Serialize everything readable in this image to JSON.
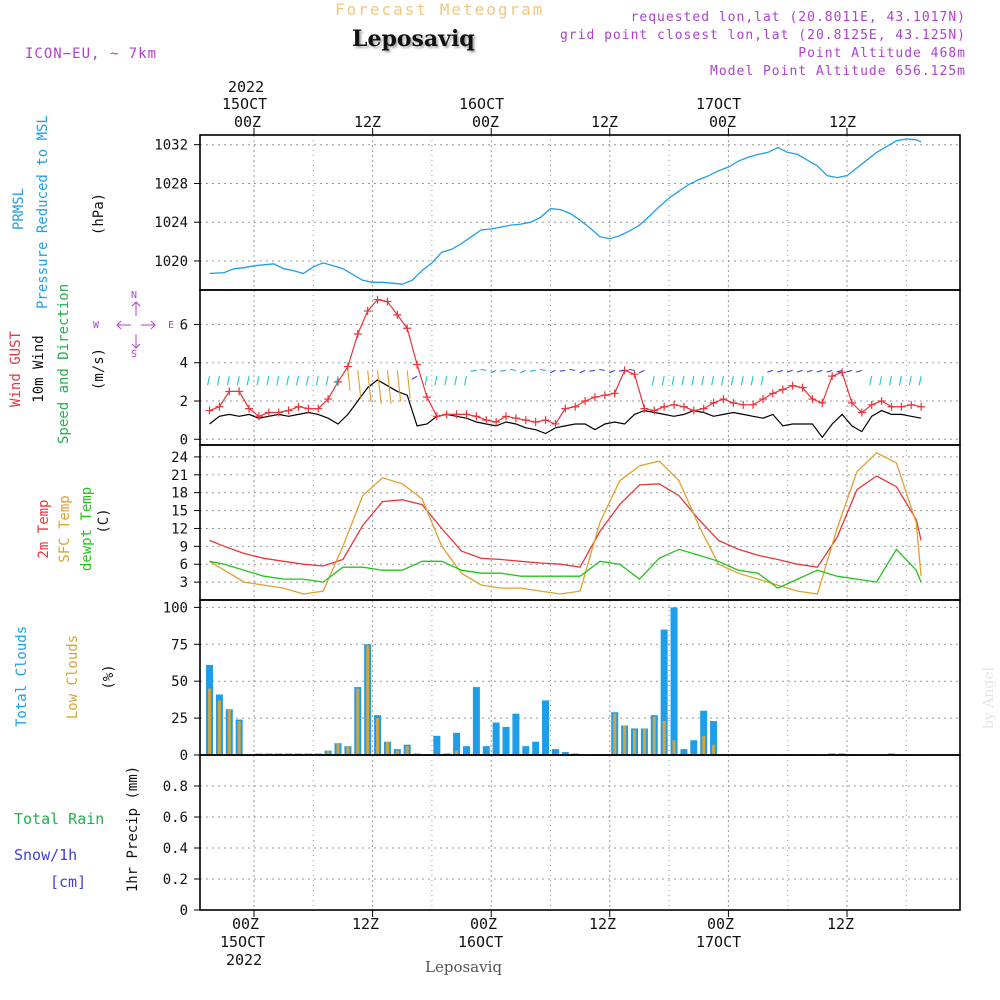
{
  "header": {
    "super_title": "Forecast Meteogram",
    "station": "Leposaviq",
    "model": "ICON−EU, ~ 7km",
    "requested": "requested lon,lat (20.8011E, 43.1017N)",
    "grid_point": "grid point closest lon,lat (20.8125E, 43.125N)",
    "point_altitude": "Point Altitude 468m",
    "model_altitude": "Model Point Altitude 656.125m",
    "footer_station": "Leposaviq",
    "watermark": "by Angel"
  },
  "time_axis": {
    "top": [
      {
        "label": "00Z",
        "date": "15OCT",
        "year": "2022"
      },
      {
        "label": "12Z"
      },
      {
        "label": "00Z",
        "date": "16OCT"
      },
      {
        "label": "12Z"
      },
      {
        "label": "00Z",
        "date": "17OCT"
      },
      {
        "label": "12Z"
      }
    ],
    "bottom": [
      {
        "label": "00Z",
        "date": "15OCT",
        "year": "2022"
      },
      {
        "label": "12Z"
      },
      {
        "label": "00Z",
        "date": "16OCT"
      },
      {
        "label": "12Z"
      },
      {
        "label": "00Z",
        "date": "17OCT"
      },
      {
        "label": "12Z"
      }
    ]
  },
  "panels": {
    "pressure": {
      "label1": "PRMSL",
      "label2": "Pressure Reduced to MSL",
      "unit": "(hPa)",
      "color": "#1e9ee8"
    },
    "wind": {
      "gust_label": "Wind GUST",
      "wind_label": "10m Wind",
      "speed_dir_label": "Speed and Direction",
      "unit": "(m/s)",
      "compass_w": "W",
      "compass_e": "E",
      "compass_n": "N",
      "compass_s": "S",
      "gust_color": "#e8363c",
      "wind_color": "#000000",
      "dir_color": "#22b14c"
    },
    "temperature": {
      "t2m_label": "2m Temp",
      "sfc_label": "SFC Temp",
      "dewpt_label": "dewpt Temp",
      "unit": "(C)",
      "t2m_color": "#e8363c",
      "sfc_color": "#e0a030",
      "dewpt_color": "#22c41c"
    },
    "clouds": {
      "total_label": "Total Clouds",
      "low_label": "Low Clouds",
      "unit": "(%)",
      "total_color": "#1e9ee8",
      "low_color": "#d4a43c"
    },
    "precip": {
      "rain_label": "Total  Rain",
      "snow_label": "Snow/1h",
      "snow_unit": "[cm]",
      "axis_label": "1hr Precip (mm)",
      "rain_color": "#22b14c",
      "snow_color": "#3f3fd8"
    }
  },
  "chart_data": [
    {
      "type": "line",
      "title": "PRMSL",
      "ylabel": "(hPa)",
      "x_hours_from_15OCT_00Z": [
        -4.5,
        -3,
        -2,
        -1,
        0,
        1,
        2,
        3,
        4,
        5,
        6,
        7,
        8,
        9,
        10,
        11,
        12,
        13,
        14,
        15,
        16,
        17,
        18,
        19,
        20,
        21,
        22,
        23,
        24,
        25,
        26,
        27,
        28,
        29,
        30,
        31,
        32,
        33,
        34,
        35,
        36,
        37,
        38,
        39,
        40,
        41,
        42,
        43,
        44,
        45,
        46,
        47,
        48,
        49,
        50,
        51,
        52,
        53,
        54,
        55,
        56,
        57,
        58,
        59,
        60,
        61,
        62,
        63,
        64,
        65,
        66,
        67,
        67.5
      ],
      "series": [
        {
          "name": "PRMSL",
          "values": [
            1018.7,
            1018.8,
            1019.2,
            1019.3,
            1019.5,
            1019.6,
            1019.7,
            1019.2,
            1019.0,
            1018.7,
            1019.4,
            1019.8,
            1019.5,
            1019.2,
            1018.6,
            1018.0,
            1017.8,
            1017.8,
            1017.7,
            1017.6,
            1018.0,
            1019.0,
            1019.8,
            1020.9,
            1021.2,
            1021.8,
            1022.5,
            1023.2,
            1023.3,
            1023.5,
            1023.7,
            1023.8,
            1024.0,
            1024.5,
            1025.4,
            1025.3,
            1024.9,
            1024.2,
            1023.4,
            1022.5,
            1022.3,
            1022.6,
            1023.1,
            1023.7,
            1024.6,
            1025.6,
            1026.5,
            1027.2,
            1027.9,
            1028.4,
            1028.8,
            1029.3,
            1029.7,
            1030.3,
            1030.7,
            1031.0,
            1031.2,
            1031.7,
            1031.2,
            1031.0,
            1030.4,
            1029.8,
            1028.8,
            1028.6,
            1028.8,
            1029.6,
            1030.4,
            1031.2,
            1031.8,
            1032.4,
            1032.6,
            1032.5,
            1032.3
          ]
        }
      ],
      "ylim": [
        1017,
        1033
      ],
      "yticks": [
        1020,
        1024,
        1028,
        1032
      ]
    },
    {
      "type": "line",
      "title": "Wind",
      "ylabel": "(m/s)",
      "x_hours_from_15OCT_00Z": [
        -4.5,
        -3.5,
        -2.5,
        -1.5,
        -0.5,
        0.5,
        1.5,
        2.5,
        3.5,
        4.5,
        5.5,
        6.5,
        7.5,
        8.5,
        9.5,
        10.5,
        11.5,
        12.5,
        13.5,
        14.5,
        15.5,
        16.5,
        17.5,
        18.5,
        19.5,
        20.5,
        21.5,
        22.5,
        23.5,
        24.5,
        25.5,
        26.5,
        27.5,
        28.5,
        29.5,
        30.5,
        31.5,
        32.5,
        33.5,
        34.5,
        35.5,
        36.5,
        37.5,
        38.5,
        39.5,
        40.5,
        41.5,
        42.5,
        43.5,
        44.5,
        45.5,
        46.5,
        47.5,
        48.5,
        49.5,
        50.5,
        51.5,
        52.5,
        53.5,
        54.5,
        55.5,
        56.5,
        57.5,
        58.5,
        59.5,
        60.5,
        61.5,
        62.5,
        63.5,
        64.5,
        65.5,
        66.5,
        67.5
      ],
      "series": [
        {
          "name": "Wind GUST",
          "values": [
            1.5,
            1.7,
            2.5,
            2.5,
            1.6,
            1.2,
            1.4,
            1.4,
            1.5,
            1.7,
            1.6,
            1.6,
            2.1,
            3.0,
            3.8,
            5.5,
            6.7,
            7.3,
            7.2,
            6.5,
            5.8,
            3.9,
            2.2,
            1.2,
            1.3,
            1.3,
            1.3,
            1.2,
            1.0,
            0.9,
            1.2,
            1.1,
            1.0,
            0.9,
            1.0,
            0.8,
            1.6,
            1.7,
            2.0,
            2.2,
            2.3,
            2.4,
            3.6,
            3.4,
            1.6,
            1.5,
            1.7,
            1.8,
            1.7,
            1.5,
            1.6,
            1.9,
            2.1,
            1.9,
            1.8,
            1.8,
            2.1,
            2.4,
            2.6,
            2.8,
            2.7,
            2.1,
            1.9,
            3.3,
            3.5,
            1.9,
            1.4,
            1.8,
            2.0,
            1.7,
            1.7,
            1.8,
            1.7
          ]
        },
        {
          "name": "10m Wind",
          "values": [
            0.8,
            1.2,
            1.3,
            1.2,
            1.3,
            1.1,
            1.2,
            1.3,
            1.2,
            1.3,
            1.4,
            1.3,
            1.1,
            0.8,
            1.3,
            2.0,
            2.7,
            3.1,
            2.8,
            2.5,
            2.3,
            0.7,
            0.8,
            1.2,
            1.3,
            1.2,
            1.1,
            0.9,
            0.8,
            0.7,
            0.9,
            0.8,
            0.6,
            0.5,
            0.3,
            0.6,
            0.7,
            0.8,
            0.8,
            0.5,
            0.8,
            0.9,
            0.8,
            1.3,
            1.5,
            1.4,
            1.3,
            1.2,
            1.3,
            1.5,
            1.4,
            1.2,
            1.3,
            1.4,
            1.3,
            1.2,
            1.1,
            1.3,
            0.7,
            0.8,
            0.8,
            0.8,
            0.1,
            0.8,
            1.3,
            0.7,
            0.4,
            1.2,
            1.5,
            1.3,
            1.3,
            1.2,
            1.1
          ]
        }
      ],
      "ylim": [
        -0.3,
        7.8
      ],
      "yticks": [
        0,
        2,
        4,
        6
      ]
    },
    {
      "type": "line",
      "title": "Temperature",
      "ylabel": "(C)",
      "x_hours_from_15OCT_00Z": [
        -4.5,
        -3,
        -1,
        1,
        3,
        5,
        7,
        9,
        11,
        13,
        15,
        17,
        19,
        21,
        23,
        25,
        27,
        29,
        31,
        33,
        35,
        37,
        39,
        41,
        43,
        45,
        47,
        49,
        51,
        53,
        55,
        57,
        59,
        61,
        63,
        65,
        67,
        67.5
      ],
      "series": [
        {
          "name": "2m Temp",
          "values": [
            10.0,
            9.0,
            7.8,
            7.0,
            6.5,
            6.0,
            5.7,
            6.8,
            12.5,
            16.5,
            16.8,
            16.0,
            12.0,
            8.2,
            7.0,
            6.8,
            6.5,
            6.2,
            6.0,
            5.5,
            11.5,
            16.0,
            19.3,
            19.5,
            17.5,
            13.5,
            10.0,
            8.5,
            7.5,
            6.8,
            6.0,
            5.5,
            10.5,
            18.5,
            20.8,
            19.0,
            13.5,
            10.0
          ]
        },
        {
          "name": "SFC Temp",
          "values": [
            6.5,
            5.0,
            3.0,
            2.5,
            2.0,
            1.0,
            1.5,
            9.0,
            17.5,
            20.5,
            19.5,
            17.0,
            9.0,
            4.5,
            2.5,
            2.0,
            2.0,
            1.5,
            1.0,
            1.5,
            13.0,
            20.0,
            22.5,
            23.3,
            20.0,
            12.5,
            6.0,
            4.5,
            3.5,
            2.5,
            1.5,
            1.0,
            12.0,
            21.5,
            24.7,
            23.0,
            13.0,
            4.0
          ]
        },
        {
          "name": "dewpt Temp",
          "values": [
            6.5,
            6.0,
            5.0,
            4.0,
            3.5,
            3.5,
            3.0,
            5.5,
            5.5,
            5.0,
            5.0,
            6.5,
            6.5,
            5.0,
            4.5,
            4.5,
            4.0,
            4.0,
            4.0,
            4.0,
            6.5,
            6.0,
            3.5,
            7.0,
            8.5,
            7.5,
            6.5,
            5.0,
            4.5,
            2.0,
            3.5,
            5.0,
            4.0,
            3.5,
            3.0,
            8.5,
            5.0,
            3.0
          ]
        }
      ],
      "ylim": [
        0,
        26
      ],
      "yticks": [
        3,
        6,
        9,
        12,
        15,
        18,
        21,
        24
      ]
    },
    {
      "type": "bar",
      "title": "Clouds",
      "ylabel": "(%)",
      "x_hours_from_15OCT_00Z": [
        -4.5,
        -3.5,
        -2.5,
        -1.5,
        -0.5,
        0.5,
        1.5,
        2.5,
        3.5,
        4.5,
        5.5,
        6.5,
        7.5,
        8.5,
        9.5,
        10.5,
        11.5,
        12.5,
        13.5,
        14.5,
        15.5,
        16.5,
        17.5,
        18.5,
        19.5,
        20.5,
        21.5,
        22.5,
        23.5,
        24.5,
        25.5,
        26.5,
        27.5,
        28.5,
        29.5,
        30.5,
        31.5,
        32.5,
        33.5,
        34.5,
        35.5,
        36.5,
        37.5,
        38.5,
        39.5,
        40.5,
        41.5,
        42.5,
        43.5,
        44.5,
        45.5,
        46.5,
        47.5,
        48.5,
        49.5,
        50.5,
        51.5,
        52.5,
        53.5,
        54.5,
        55.5,
        56.5,
        57.5,
        58.5,
        59.5,
        60.5,
        61.5,
        62.5,
        63.5,
        64.5,
        65.5,
        66.5,
        67.5
      ],
      "series": [
        {
          "name": "Total Clouds",
          "values": [
            61,
            41,
            31,
            24,
            0,
            1,
            1,
            1,
            1,
            1,
            1,
            1,
            3,
            8,
            6,
            46,
            75,
            27,
            9,
            4,
            7,
            1,
            0,
            13,
            1,
            15,
            6,
            46,
            6,
            22,
            19,
            28,
            6,
            9,
            37,
            4,
            2,
            1,
            0,
            0,
            0,
            29,
            20,
            18,
            18,
            27,
            85,
            100,
            4,
            10,
            30,
            23,
            0,
            0,
            0,
            0,
            0,
            0,
            0,
            0,
            0,
            0,
            0,
            1,
            1,
            0,
            0,
            0,
            0,
            1,
            0,
            0,
            0
          ]
        },
        {
          "name": "Low Clouds",
          "values": [
            45,
            37,
            31,
            23,
            0,
            1,
            1,
            1,
            1,
            1,
            1,
            1,
            3,
            8,
            6,
            45,
            74,
            25,
            9,
            3,
            6,
            1,
            0,
            0,
            0,
            3,
            0,
            0,
            0,
            0,
            0,
            0,
            0,
            0,
            0,
            0,
            0,
            0,
            0,
            0,
            0,
            28,
            20,
            17,
            18,
            26,
            23,
            10,
            0,
            0,
            13,
            7,
            0,
            0,
            0,
            0,
            0,
            0,
            0,
            0,
            0,
            0,
            0,
            0,
            0,
            0,
            0,
            0,
            0,
            0,
            0,
            0,
            0
          ]
        }
      ],
      "ylim": [
        0,
        105
      ],
      "yticks": [
        0,
        25,
        50,
        75,
        100
      ]
    },
    {
      "type": "bar",
      "title": "1hr Precip",
      "ylabel": "1hr Precip (mm)",
      "series": [
        {
          "name": "Total Rain",
          "values": []
        },
        {
          "name": "Snow/1h",
          "values": []
        }
      ],
      "ylim": [
        0,
        1
      ],
      "yticks": [
        0,
        0.2,
        0.4,
        0.6,
        0.8
      ]
    }
  ]
}
